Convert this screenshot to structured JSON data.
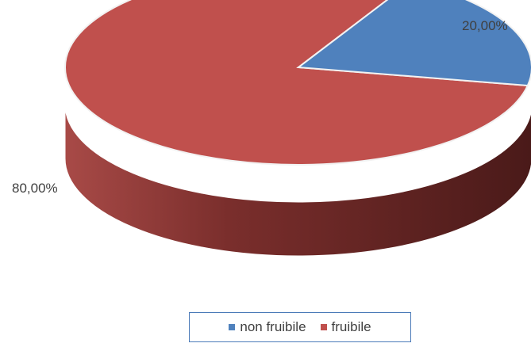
{
  "chart_data": {
    "type": "pie",
    "style": "3d",
    "title": "",
    "labels": [
      "non fruibile",
      "fruibile"
    ],
    "values": [
      20.0,
      80.0
    ],
    "data_labels": [
      "20,00%",
      "80,00%"
    ],
    "colors": [
      "#4f81bd",
      "#c0504d"
    ],
    "legend_position": "bottom"
  },
  "legend": {
    "items": [
      {
        "label": "non fruibile",
        "color": "#4f81bd"
      },
      {
        "label": "fruibile",
        "color": "#c0504d"
      }
    ]
  }
}
